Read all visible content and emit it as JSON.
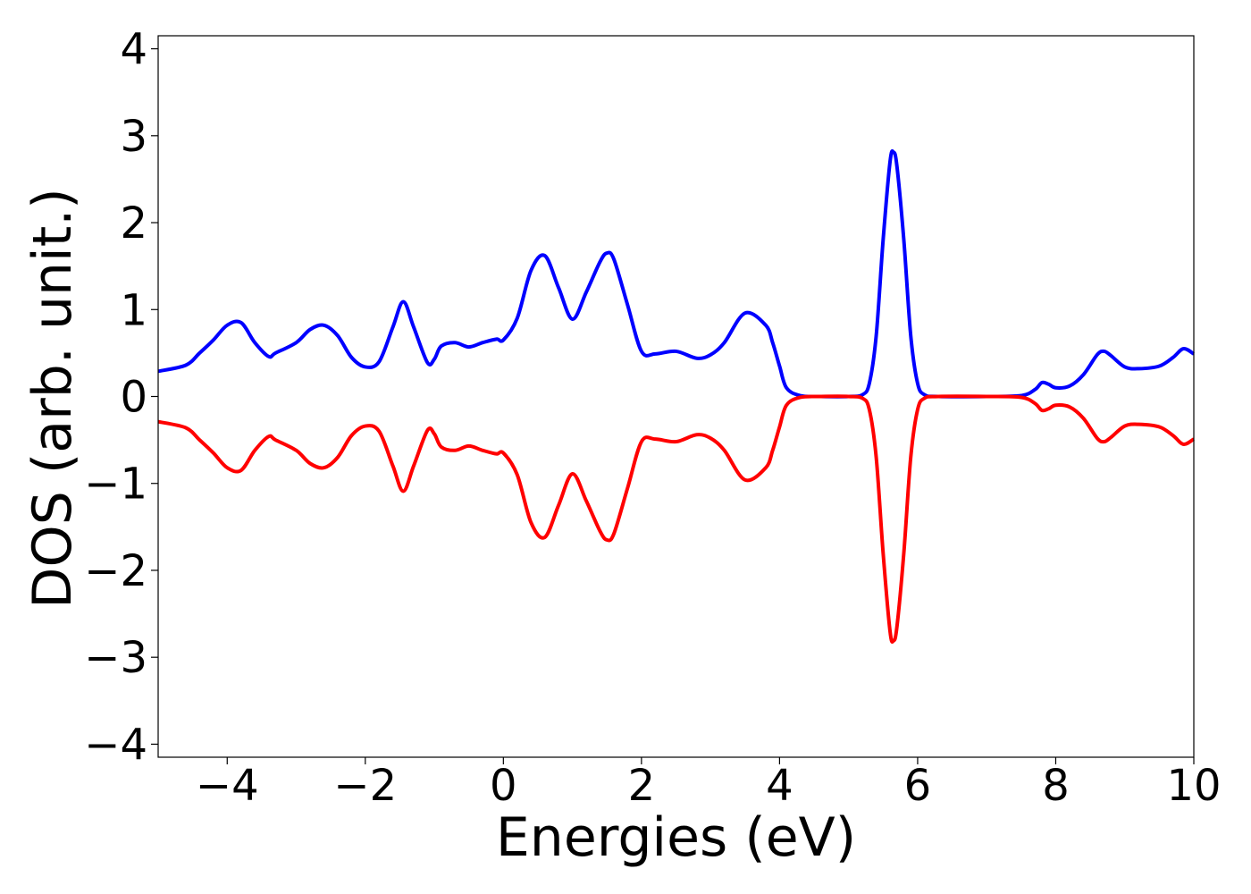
{
  "chart_data": {
    "type": "line",
    "title": "",
    "xlabel": "Energies (eV)",
    "ylabel": "DOS (arb. unit.)",
    "xlim": [
      -5,
      10
    ],
    "ylim": [
      -4.15,
      4.15
    ],
    "grid": false,
    "legend": "none",
    "xticks": [
      -4,
      -2,
      0,
      2,
      4,
      6,
      8,
      10
    ],
    "xtick_labels": [
      "−4",
      "−2",
      "0",
      "2",
      "4",
      "6",
      "8",
      "10"
    ],
    "yticks": [
      4,
      3,
      2,
      1,
      0,
      -1,
      -2,
      -3,
      -4
    ],
    "ytick_labels": [
      "4",
      "3",
      "2",
      "1",
      "0",
      "−1",
      "−2",
      "−3",
      "−4"
    ],
    "series": [
      {
        "color": "#0000ff",
        "x": [
          -5.0,
          -4.6,
          -4.4,
          -4.2,
          -4.0,
          -3.8,
          -3.6,
          -3.4,
          -3.3,
          -3.0,
          -2.8,
          -2.6,
          -2.4,
          -2.2,
          -2.0,
          -1.8,
          -1.6,
          -1.45,
          -1.3,
          -1.1,
          -1.0,
          -0.9,
          -0.7,
          -0.5,
          -0.3,
          -0.1,
          0.0,
          0.2,
          0.4,
          0.6,
          0.8,
          1.0,
          1.2,
          1.4,
          1.5,
          1.6,
          1.8,
          2.0,
          2.2,
          2.5,
          2.8,
          3.0,
          3.2,
          3.5,
          3.8,
          3.9,
          4.0,
          4.1,
          4.3,
          4.6,
          5.0,
          5.2,
          5.3,
          5.4,
          5.5,
          5.6,
          5.65,
          5.7,
          5.8,
          5.9,
          6.0,
          6.1,
          6.3,
          7.0,
          7.5,
          7.7,
          7.8,
          7.9,
          8.0,
          8.2,
          8.4,
          8.6,
          8.7,
          8.8,
          9.0,
          9.2,
          9.5,
          9.7,
          9.85,
          10.0
        ],
        "y": [
          0.29,
          0.36,
          0.5,
          0.65,
          0.82,
          0.85,
          0.62,
          0.46,
          0.5,
          0.62,
          0.77,
          0.82,
          0.7,
          0.45,
          0.34,
          0.4,
          0.8,
          1.09,
          0.8,
          0.39,
          0.43,
          0.58,
          0.62,
          0.57,
          0.62,
          0.66,
          0.65,
          0.9,
          1.45,
          1.62,
          1.25,
          0.89,
          1.2,
          1.55,
          1.65,
          1.58,
          1.05,
          0.52,
          0.49,
          0.52,
          0.44,
          0.48,
          0.62,
          0.96,
          0.82,
          0.62,
          0.35,
          0.1,
          0.01,
          0.0,
          0.0,
          0.02,
          0.15,
          0.7,
          1.8,
          2.7,
          2.81,
          2.65,
          1.8,
          0.7,
          0.15,
          0.02,
          0.0,
          0.0,
          0.01,
          0.08,
          0.16,
          0.14,
          0.1,
          0.12,
          0.25,
          0.48,
          0.52,
          0.47,
          0.34,
          0.32,
          0.35,
          0.45,
          0.55,
          0.49
        ]
      },
      {
        "color": "#ff0000",
        "x": [
          -5.0,
          -4.6,
          -4.4,
          -4.2,
          -4.0,
          -3.8,
          -3.6,
          -3.4,
          -3.3,
          -3.0,
          -2.8,
          -2.6,
          -2.4,
          -2.2,
          -2.0,
          -1.8,
          -1.6,
          -1.45,
          -1.3,
          -1.1,
          -1.0,
          -0.9,
          -0.7,
          -0.5,
          -0.3,
          -0.1,
          0.0,
          0.2,
          0.4,
          0.6,
          0.8,
          1.0,
          1.2,
          1.4,
          1.5,
          1.6,
          1.8,
          2.0,
          2.2,
          2.5,
          2.8,
          3.0,
          3.2,
          3.5,
          3.8,
          3.9,
          4.0,
          4.1,
          4.3,
          4.6,
          5.0,
          5.2,
          5.3,
          5.4,
          5.5,
          5.6,
          5.65,
          5.7,
          5.8,
          5.9,
          6.0,
          6.1,
          6.3,
          7.0,
          7.5,
          7.7,
          7.8,
          7.9,
          8.0,
          8.2,
          8.4,
          8.6,
          8.7,
          8.8,
          9.0,
          9.2,
          9.5,
          9.7,
          9.85,
          10.0
        ],
        "y": [
          -0.29,
          -0.36,
          -0.5,
          -0.65,
          -0.82,
          -0.85,
          -0.62,
          -0.46,
          -0.5,
          -0.62,
          -0.77,
          -0.82,
          -0.7,
          -0.45,
          -0.34,
          -0.4,
          -0.8,
          -1.09,
          -0.8,
          -0.39,
          -0.43,
          -0.58,
          -0.62,
          -0.57,
          -0.62,
          -0.66,
          -0.65,
          -0.9,
          -1.45,
          -1.62,
          -1.25,
          -0.89,
          -1.2,
          -1.55,
          -1.65,
          -1.58,
          -1.05,
          -0.52,
          -0.49,
          -0.52,
          -0.44,
          -0.48,
          -0.62,
          -0.96,
          -0.82,
          -0.62,
          -0.35,
          -0.1,
          -0.01,
          0.0,
          0.0,
          -0.02,
          -0.15,
          -0.7,
          -1.8,
          -2.7,
          -2.81,
          -2.65,
          -1.8,
          -0.7,
          -0.15,
          -0.02,
          0.0,
          0.0,
          -0.01,
          -0.08,
          -0.16,
          -0.14,
          -0.1,
          -0.12,
          -0.25,
          -0.48,
          -0.52,
          -0.47,
          -0.34,
          -0.32,
          -0.35,
          -0.45,
          -0.55,
          -0.49
        ]
      }
    ]
  }
}
